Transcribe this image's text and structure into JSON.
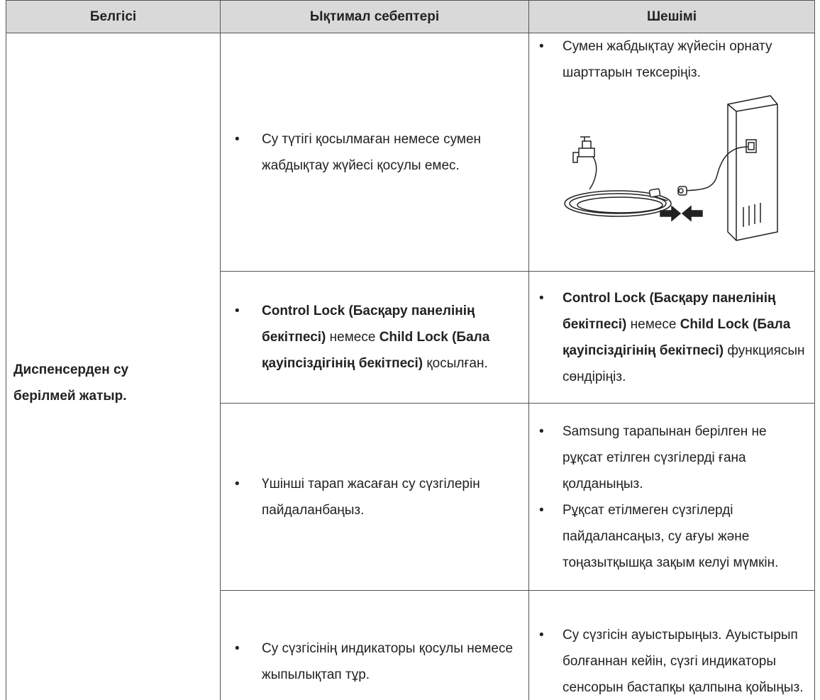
{
  "table": {
    "header": [
      "Белгісі",
      "Ықтимал себептері",
      "Шешімі"
    ],
    "symptom": "Диспенсерден су берілмей жатыр.",
    "rows": [
      {
        "causes": [
          [
            {
              "text": "Су түтігі қосылмаған немесе сумен жабдықтау жүйесі қосулы емес."
            }
          ]
        ],
        "solutions": [
          [
            {
              "text": "Сумен жабдықтау жүйесін орнату шарттарын тексеріңіз."
            }
          ]
        ]
      },
      {
        "causes": [
          [
            {
              "text": "Control Lock (Басқару панелінің бекітпесі)",
              "bold": true
            },
            {
              "text": " немесе "
            },
            {
              "text": "Child Lock (Бала қауіпсіздігінің бекітпесі)",
              "bold": true
            },
            {
              "text": " қосылған."
            }
          ]
        ],
        "solutions": [
          [
            {
              "text": "Control Lock (Басқару панелінің бекітпесі)",
              "bold": true
            },
            {
              "text": " немесе "
            },
            {
              "text": "Child Lock (Бала қауіпсіздігінің бекітпесі)",
              "bold": true
            },
            {
              "text": " функциясын сөндіріңіз."
            }
          ]
        ]
      },
      {
        "causes": [
          [
            {
              "text": "Үшінші тарап жасаған су сүзгілерін пайдаланбаңыз."
            }
          ]
        ],
        "solutions": [
          [
            {
              "text": "Samsung тарапынан берілген не рұқсат етілген сүзгілерді ғана қолданыңыз."
            }
          ],
          [
            {
              "text": "Рұқсат етілмеген сүзгілерді пайдалансаңыз, су ағуы және тоңазытқышқа зақым келуі мүмкін."
            }
          ]
        ]
      },
      {
        "causes": [
          [
            {
              "text": "Су сүзгісінің индикаторы қосулы немесе жыпылықтап тұр."
            }
          ]
        ],
        "solutions": [
          [
            {
              "text": "Су сүзгісін ауыстырыңыз. Ауыстырып болғаннан кейін, сүзгі индикаторы сенсорын бастапқы қалпына қойыңыз."
            }
          ]
        ]
      }
    ]
  }
}
